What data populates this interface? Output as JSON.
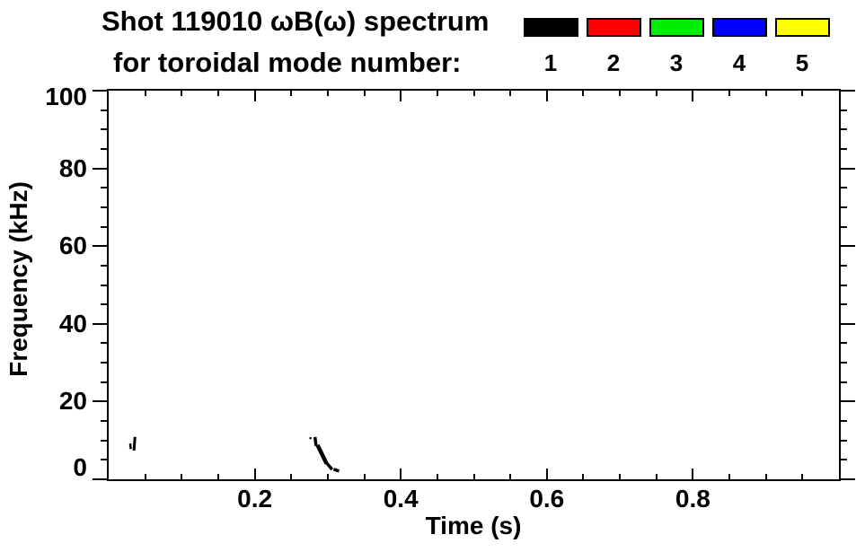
{
  "title": {
    "line1": "Shot 119010 ωB(ω) spectrum",
    "line2": "for toroidal mode number:"
  },
  "legend": {
    "items": [
      {
        "label": "1",
        "color": "#000000"
      },
      {
        "label": "2",
        "color": "#ff0000"
      },
      {
        "label": "3",
        "color": "#00ee00"
      },
      {
        "label": "4",
        "color": "#0000ff"
      },
      {
        "label": "5",
        "color": "#ffff00"
      }
    ]
  },
  "chart_data": {
    "type": "scatter",
    "title": "Shot 119010 ωB(ω) spectrum for toroidal mode number: 1 2 3 4 5",
    "xlabel": "Time (s)",
    "ylabel": "Frequency (kHz)",
    "xlim": [
      0,
      1
    ],
    "ylim": [
      0,
      100
    ],
    "x_major_ticks": [
      0.2,
      0.4,
      0.6,
      0.8
    ],
    "x_tick_labels": [
      "0.2",
      "0.4",
      "0.6",
      "0.8"
    ],
    "x_minor_interval": 0.05,
    "y_major_ticks": [
      0,
      20,
      40,
      60,
      80,
      100
    ],
    "y_tick_labels": [
      "0",
      "20",
      "40",
      "60",
      "80",
      "100"
    ],
    "y_minor_interval": 5,
    "grid": false,
    "legend_position": "top-right above plot",
    "segment_format": "[t1_s, f1_kHz, t2_s, f2_kHz, stroke_px]",
    "series": [
      {
        "name": "n=1",
        "color": "#000000",
        "segments": [
          [
            0.0295,
            9.2,
            0.0302,
            7.8,
            2.5
          ],
          [
            0.036,
            10.9,
            0.0346,
            7.4,
            3
          ],
          [
            0.2757,
            10.8,
            0.277,
            10.4,
            2.5
          ],
          [
            0.2825,
            10.9,
            0.284,
            8.6,
            3.5
          ],
          [
            0.286,
            8.8,
            0.2985,
            4.0,
            4.5
          ],
          [
            0.2985,
            4.2,
            0.306,
            2.5,
            3.5
          ],
          [
            0.308,
            2.6,
            0.3155,
            2.1,
            3.5
          ]
        ]
      },
      {
        "name": "n=2",
        "color": "#ff0000",
        "segments": []
      },
      {
        "name": "n=3",
        "color": "#00ee00",
        "segments": []
      },
      {
        "name": "n=4",
        "color": "#0000ff",
        "segments": []
      },
      {
        "name": "n=5",
        "color": "#ffff00",
        "segments": []
      }
    ]
  }
}
